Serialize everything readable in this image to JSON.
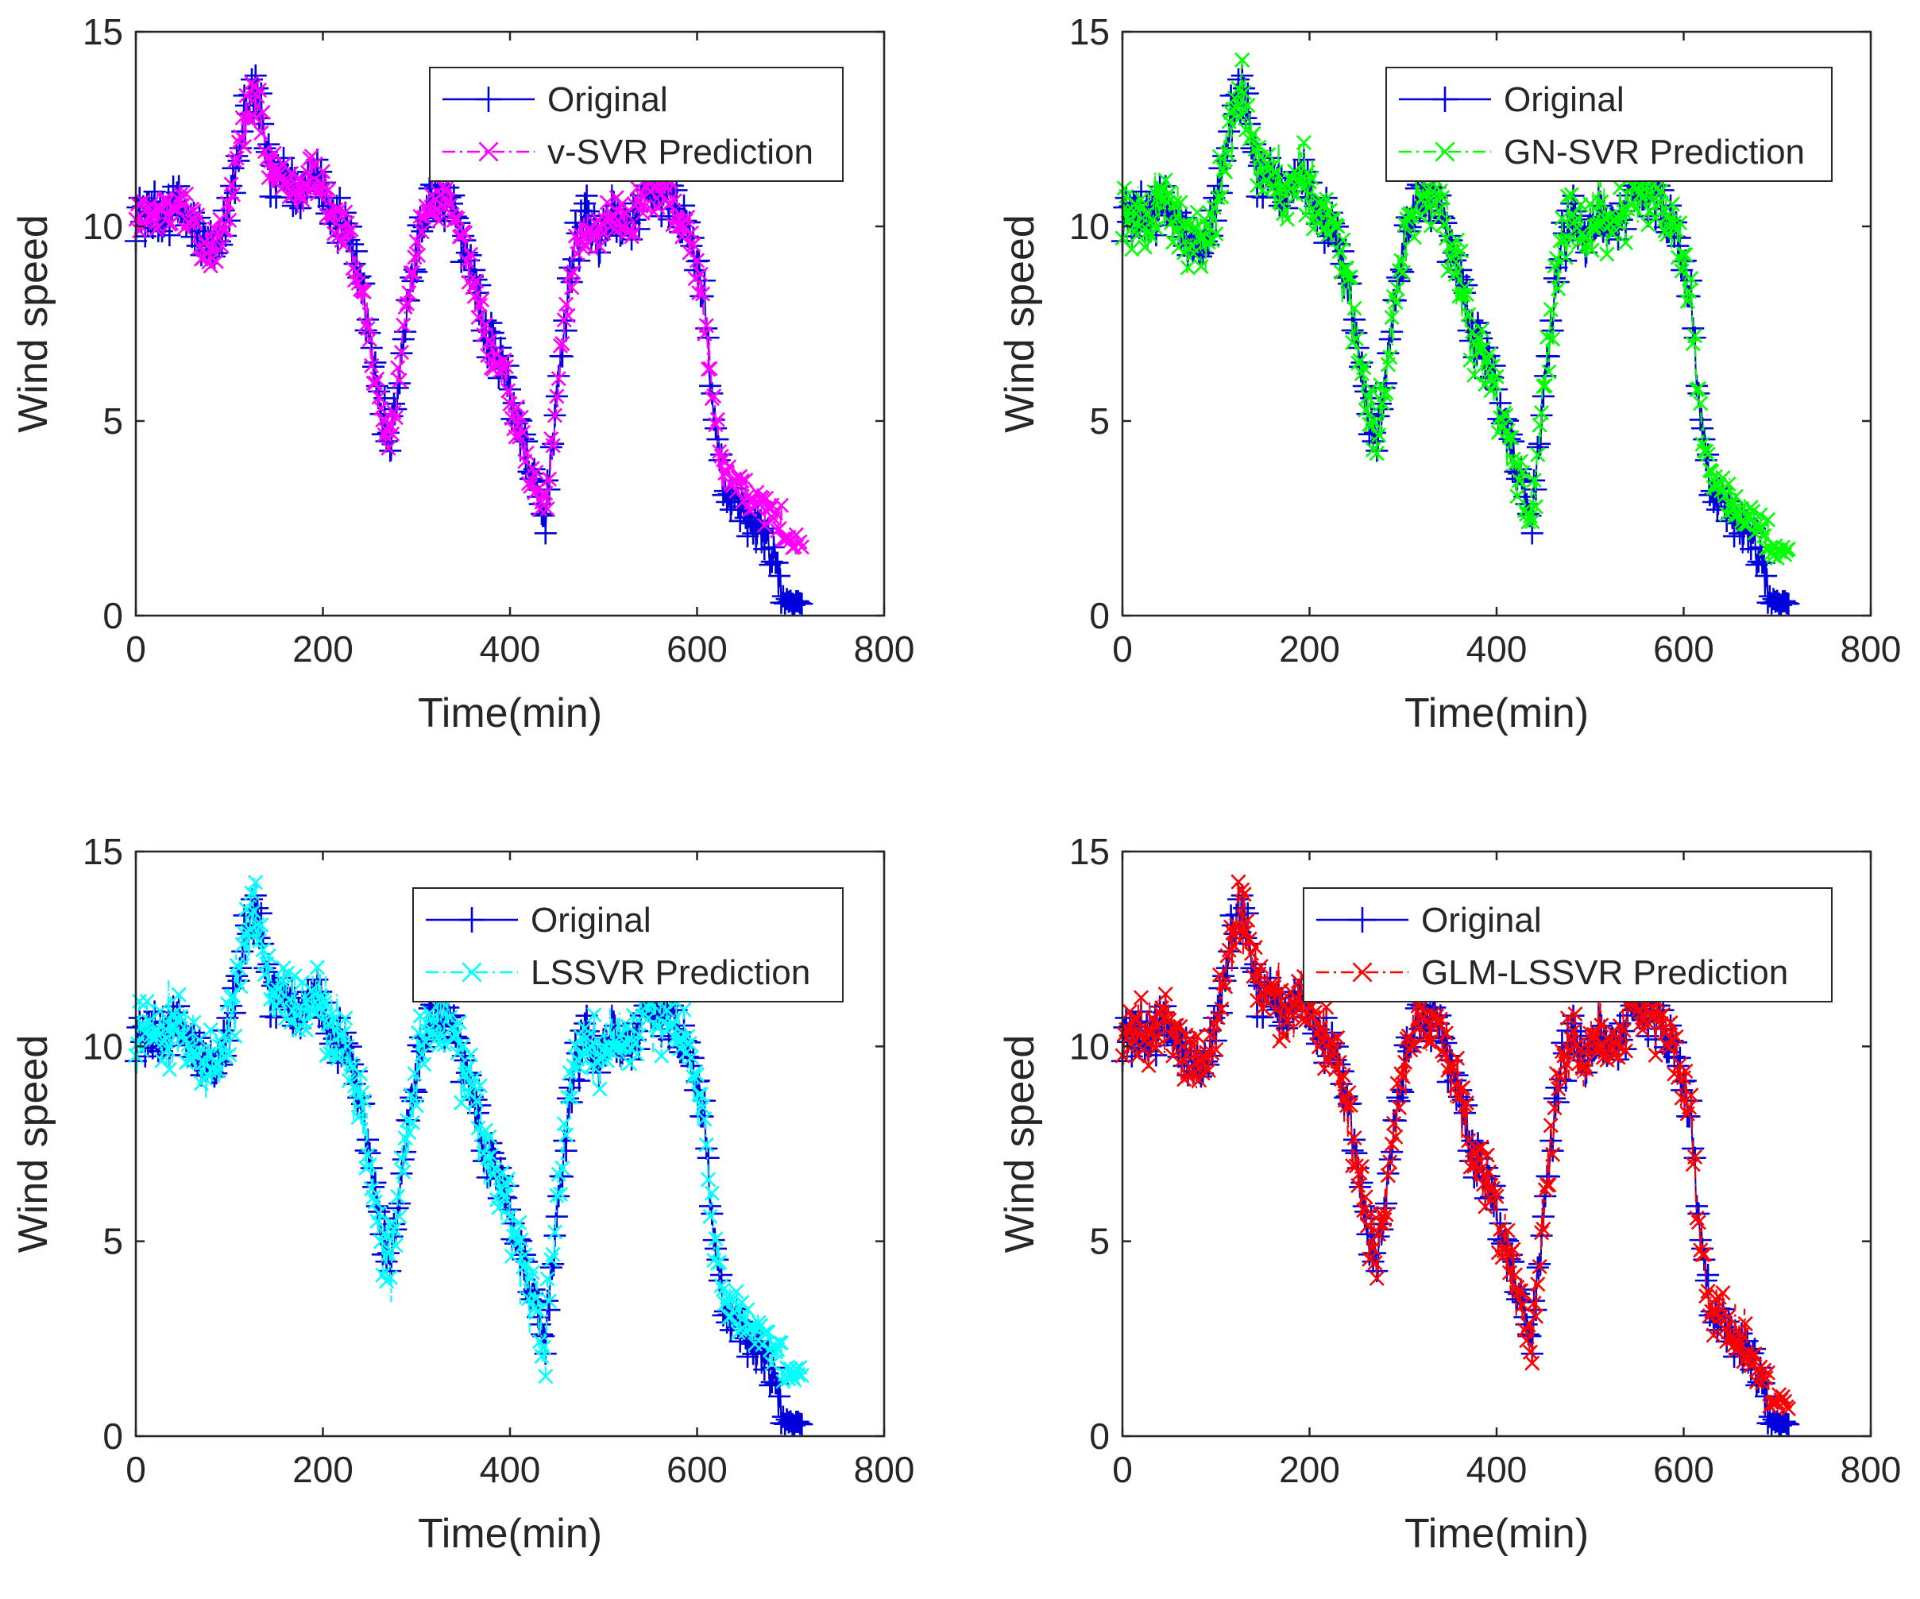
{
  "colors": {
    "original": "#0000dd",
    "axis": "#262626",
    "background": "#ffffff"
  },
  "chart_data": [
    {
      "type": "line",
      "id": "vsvr",
      "xlabel": "Time(min)",
      "ylabel": "Wind speed",
      "xlim": [
        0,
        800
      ],
      "ylim": [
        0,
        15
      ],
      "xticks": [
        "0",
        "200",
        "400",
        "600",
        "800"
      ],
      "yticks": [
        "0",
        "5",
        "10",
        "15"
      ],
      "legend_position": "top-right",
      "series": [
        {
          "name": "Original",
          "color": "#0000dd",
          "marker": "plus",
          "line": "solid",
          "role": "original"
        },
        {
          "name": "v-SVR Prediction",
          "color": "#ff00ff",
          "marker": "x",
          "line": "dash-dot",
          "role": "prediction",
          "mode": "smooth",
          "noise": 0.55,
          "endValue": 1.9
        }
      ]
    },
    {
      "type": "line",
      "id": "gnsvr",
      "xlabel": "Time(min)",
      "ylabel": "Wind speed",
      "xlim": [
        0,
        800
      ],
      "ylim": [
        0,
        15
      ],
      "xticks": [
        "0",
        "200",
        "400",
        "600",
        "800"
      ],
      "yticks": [
        "0",
        "5",
        "10",
        "15"
      ],
      "legend_position": "top-right",
      "series": [
        {
          "name": "Original",
          "color": "#0000dd",
          "marker": "plus",
          "line": "solid",
          "role": "original"
        },
        {
          "name": "GN-SVR Prediction",
          "color": "#00ff00",
          "marker": "x",
          "line": "dash-dot",
          "role": "prediction",
          "mode": "track",
          "noise": 0.5,
          "endValue": 1.6
        }
      ]
    },
    {
      "type": "line",
      "id": "lssvr",
      "xlabel": "Time(min)",
      "ylabel": "Wind speed",
      "xlim": [
        0,
        800
      ],
      "ylim": [
        0,
        15
      ],
      "xticks": [
        "0",
        "200",
        "400",
        "600",
        "800"
      ],
      "yticks": [
        "0",
        "5",
        "10",
        "15"
      ],
      "legend_position": "top-right",
      "series": [
        {
          "name": "Original",
          "color": "#0000dd",
          "marker": "plus",
          "line": "solid",
          "role": "original"
        },
        {
          "name": "LSSVR Prediction",
          "color": "#00ffff",
          "marker": "x",
          "line": "dash-dot",
          "role": "prediction",
          "mode": "track",
          "noise": 0.6,
          "endValue": 1.6
        }
      ]
    },
    {
      "type": "line",
      "id": "glmlssvr",
      "xlabel": "Time(min)",
      "ylabel": "Wind speed",
      "xlim": [
        0,
        800
      ],
      "ylim": [
        0,
        15
      ],
      "xticks": [
        "0",
        "200",
        "400",
        "600",
        "800"
      ],
      "yticks": [
        "0",
        "5",
        "10",
        "15"
      ],
      "legend_position": "top-right",
      "series": [
        {
          "name": "Original",
          "color": "#0000dd",
          "marker": "plus",
          "line": "solid",
          "role": "original"
        },
        {
          "name": "GLM-LSSVR Prediction",
          "color": "#ff0000",
          "marker": "x",
          "line": "dash-dot",
          "role": "prediction",
          "mode": "track",
          "noise": 0.45,
          "endValue": 0.9
        }
      ]
    }
  ],
  "original_keypoints": {
    "time": [
      0,
      20,
      45,
      60,
      85,
      100,
      120,
      130,
      145,
      160,
      175,
      190,
      205,
      225,
      245,
      258,
      272,
      290,
      305,
      320,
      340,
      360,
      375,
      390,
      405,
      420,
      438,
      450,
      465,
      480,
      495,
      510,
      525,
      545,
      565,
      590,
      608,
      618,
      630,
      650,
      675,
      695,
      712
    ],
    "wind_speed": [
      10.3,
      10.2,
      10.6,
      10.0,
      9.2,
      10.5,
      13.2,
      13.3,
      11.2,
      11.5,
      10.8,
      11.6,
      10.5,
      9.8,
      8.0,
      5.8,
      4.3,
      8.0,
      10.0,
      10.8,
      10.4,
      8.8,
      7.0,
      6.6,
      5.2,
      3.8,
      2.5,
      5.5,
      9.0,
      10.2,
      9.5,
      10.5,
      9.8,
      10.8,
      10.8,
      10.0,
      8.0,
      5.0,
      3.2,
      2.8,
      1.8,
      0.6,
      0.4
    ]
  }
}
